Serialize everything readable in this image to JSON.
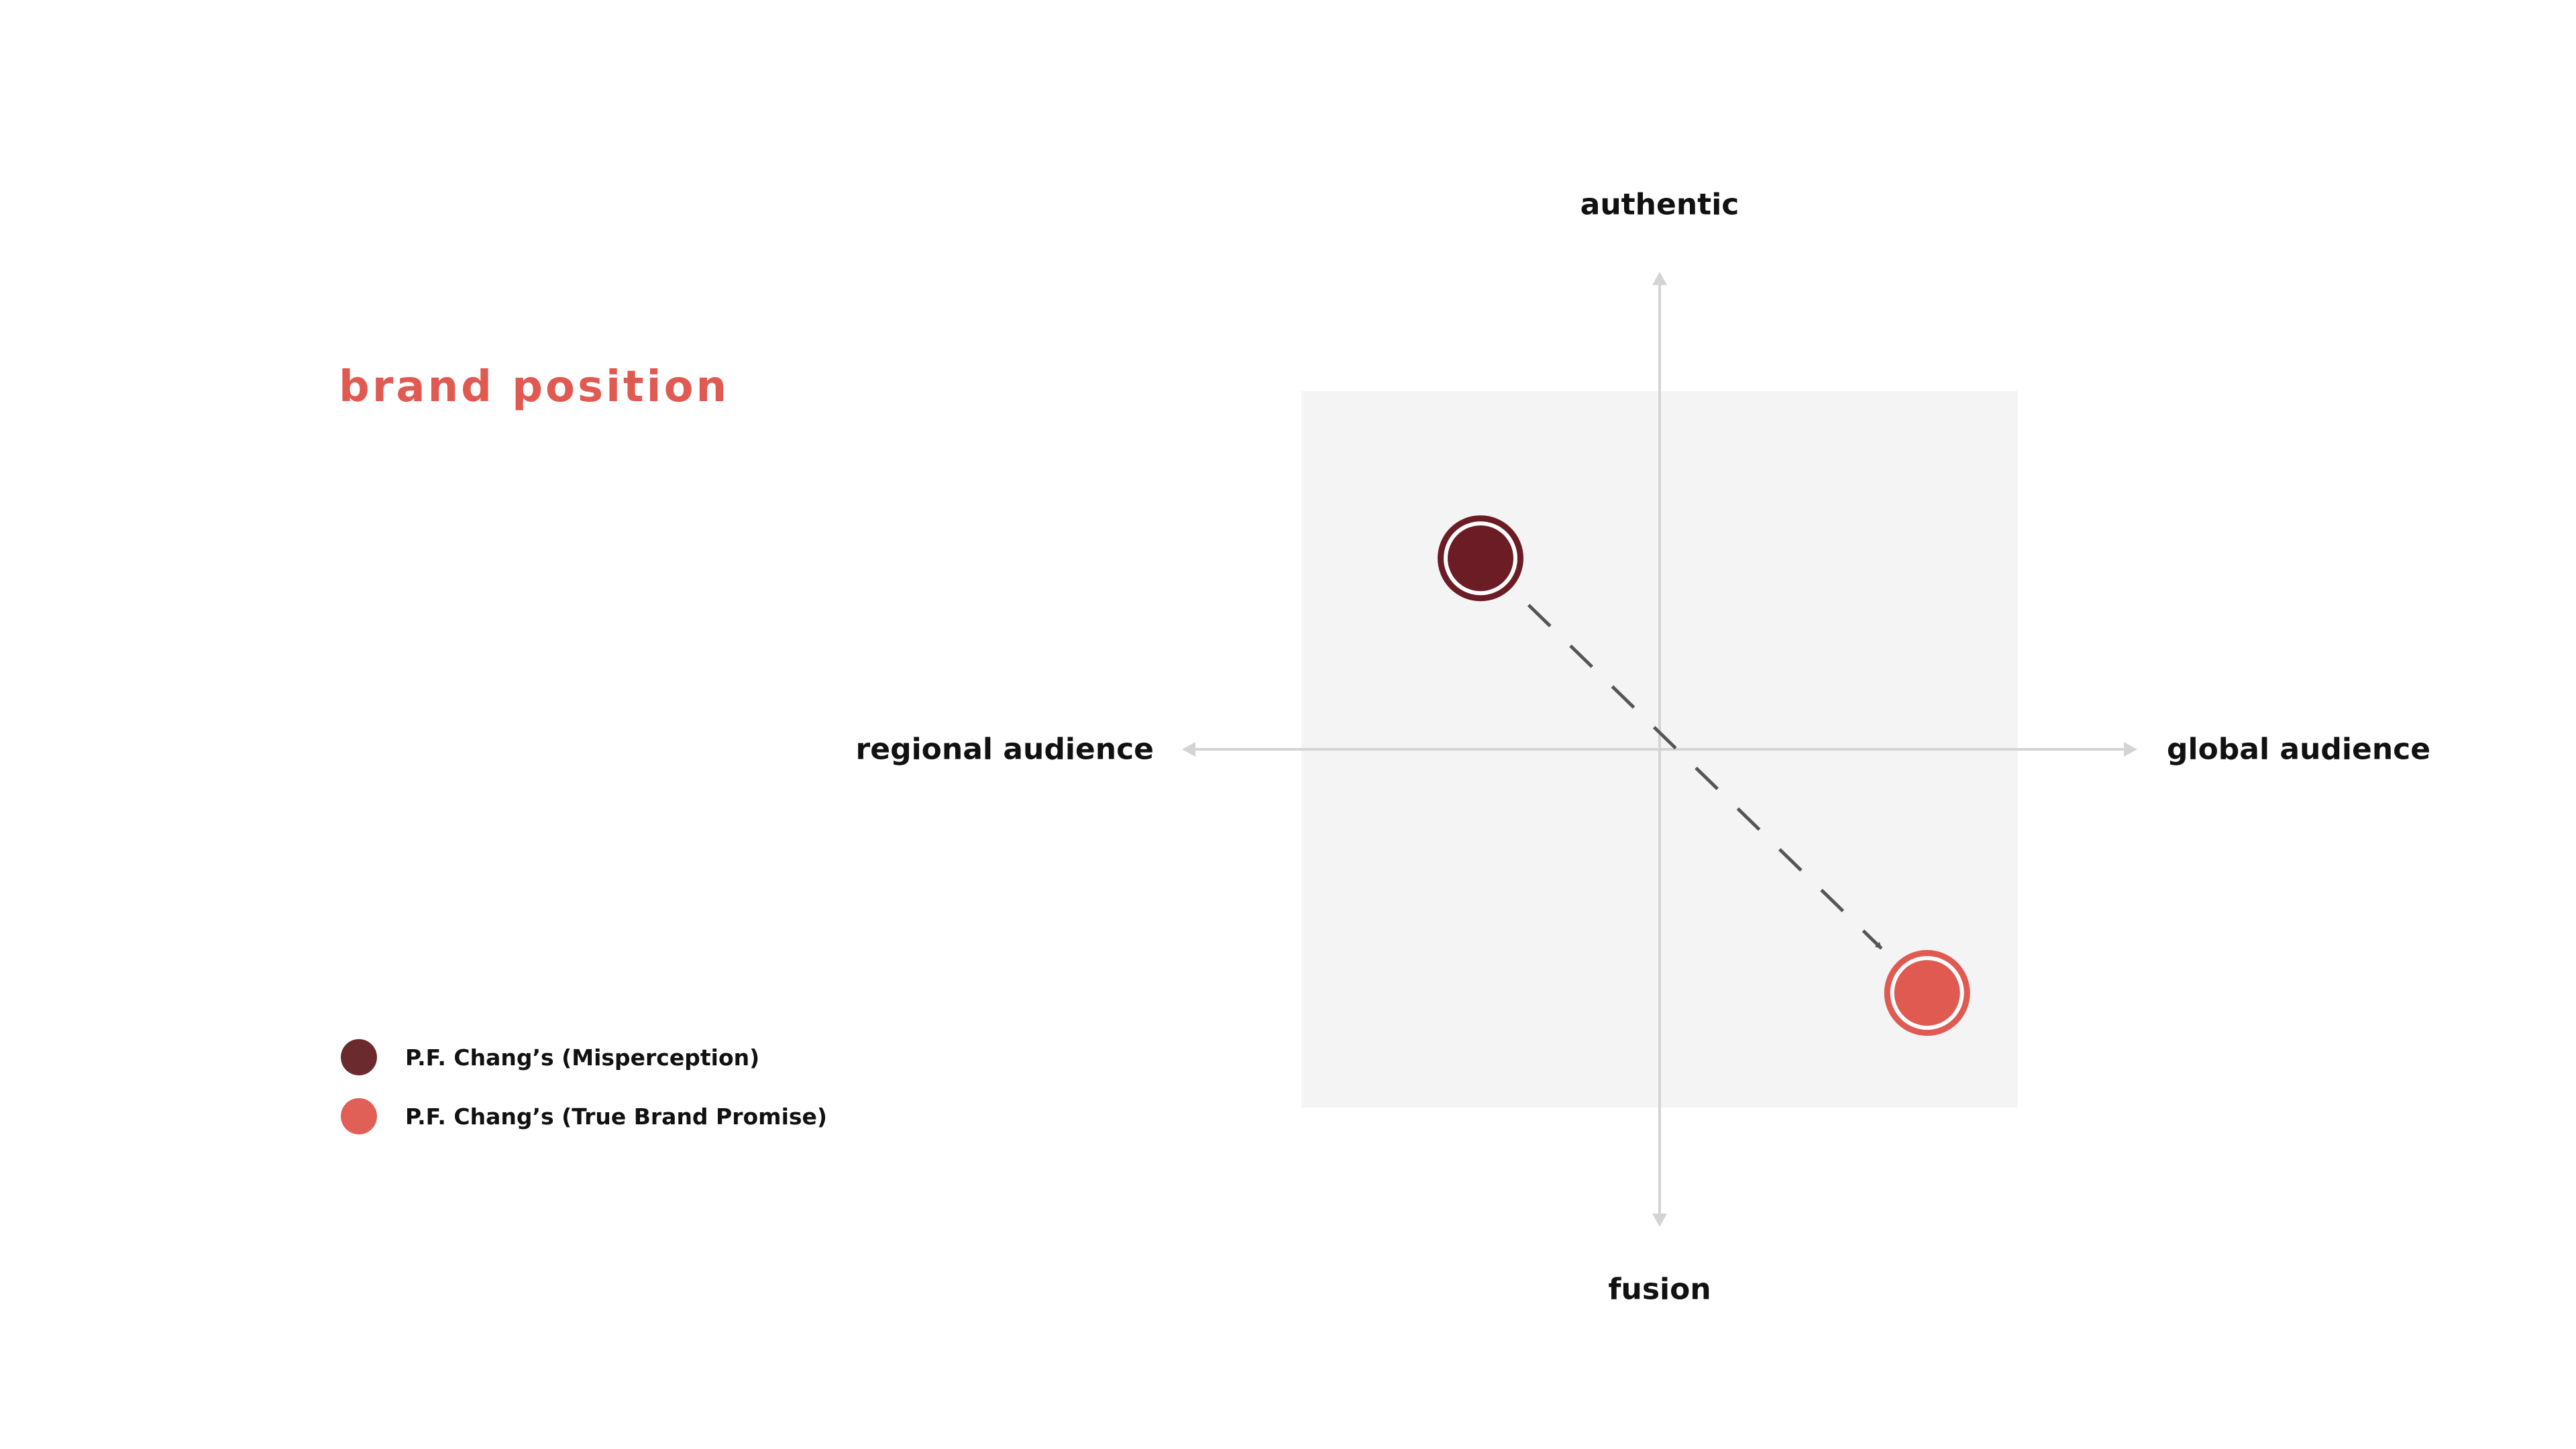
{
  "title": "brand position",
  "colors": {
    "title": "#e05a52",
    "quadrant_bg": "#f3f4f3",
    "axis": "#d4d4d4",
    "arrow": "#555555",
    "misperception": "#6b1c24",
    "true_promise": "#e05a52",
    "legend_misperception": "#6b2a2e",
    "legend_true_promise": "#e05f57"
  },
  "chart_data": {
    "type": "scatter",
    "axes": {
      "x": {
        "min_label": "regional audience",
        "max_label": "global audience",
        "range": [
          -1,
          1
        ]
      },
      "y": {
        "min_label": "fusion",
        "max_label": "authentic",
        "range": [
          -1,
          1
        ]
      }
    },
    "quadrant_area": [
      -0.75,
      0.75
    ],
    "series": [
      {
        "name": "P.F. Chang's (Misperception)",
        "x": -0.375,
        "y": 0.4,
        "color": "#6b1c24"
      },
      {
        "name": "P.F. Chang's (True Brand Promise)",
        "x": 0.56,
        "y": -0.51,
        "color": "#e05a52"
      }
    ],
    "annotations": [
      {
        "type": "dashed-arrow",
        "from": 0,
        "to": 1
      }
    ],
    "legend_position": "bottom-left",
    "grid": false
  },
  "legend": [
    {
      "label": "P.F. Chang’s (Misperception)",
      "color_key": "legend_misperception"
    },
    {
      "label": "P.F. Chang’s (True Brand Promise)",
      "color_key": "legend_true_promise"
    }
  ]
}
